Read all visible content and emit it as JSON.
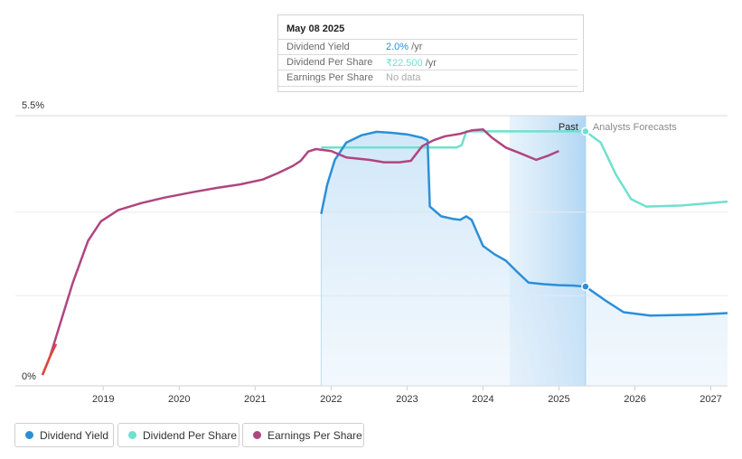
{
  "colors": {
    "dividend_yield": "#2b8fd8",
    "dividend_per_share": "#6fe0cf",
    "earnings_per_share": "#b0457f",
    "eps_negative": "#e0463c"
  },
  "tooltip": {
    "date": "May 08 2025",
    "rows": [
      {
        "label": "Dividend Yield",
        "value": "2.0%",
        "unit": " /yr"
      },
      {
        "label": "Dividend Per Share",
        "value": "₹22.500",
        "unit": " /yr"
      },
      {
        "label": "Earnings Per Share",
        "value": "No data",
        "unit": ""
      }
    ]
  },
  "legend": [
    {
      "label": "Dividend Yield"
    },
    {
      "label": "Dividend Per Share"
    },
    {
      "label": "Earnings Per Share"
    }
  ],
  "chart_data": {
    "type": "line",
    "x_range": [
      2018.2,
      2027.22
    ],
    "y_range_pct": [
      0,
      5.5
    ],
    "y_tick_labels": [
      {
        "v": 5.5,
        "label": "5.5%"
      },
      {
        "v": 0,
        "label": "0%"
      }
    ],
    "x_ticks": [
      {
        "v": 2019,
        "label": "2019"
      },
      {
        "v": 2020,
        "label": "2020"
      },
      {
        "v": 2021,
        "label": "2021"
      },
      {
        "v": 2022,
        "label": "2022"
      },
      {
        "v": 2023,
        "label": "2023"
      },
      {
        "v": 2024,
        "label": "2024"
      },
      {
        "v": 2025,
        "label": "2025"
      },
      {
        "v": 2026,
        "label": "2026"
      },
      {
        "v": 2027,
        "label": "2027"
      }
    ],
    "past_label": "Past",
    "forecast_label": "Analysts Forecasts",
    "past_shade_start": 2024.35,
    "divider_x": 2025.35,
    "series": [
      {
        "name": "Dividend Yield",
        "key": "dividend_yield",
        "fill": true,
        "values": [
          [
            2021.87,
            3.5
          ],
          [
            2021.95,
            4.1
          ],
          [
            2022.05,
            4.6
          ],
          [
            2022.2,
            4.95
          ],
          [
            2022.4,
            5.1
          ],
          [
            2022.6,
            5.17
          ],
          [
            2022.8,
            5.15
          ],
          [
            2023.0,
            5.12
          ],
          [
            2023.2,
            5.05
          ],
          [
            2023.27,
            5.0
          ],
          [
            2023.3,
            3.65
          ],
          [
            2023.45,
            3.45
          ],
          [
            2023.6,
            3.4
          ],
          [
            2023.7,
            3.38
          ],
          [
            2023.78,
            3.45
          ],
          [
            2023.85,
            3.38
          ],
          [
            2024.0,
            2.85
          ],
          [
            2024.15,
            2.68
          ],
          [
            2024.3,
            2.55
          ],
          [
            2024.45,
            2.32
          ],
          [
            2024.6,
            2.1
          ],
          [
            2024.8,
            2.07
          ],
          [
            2025.0,
            2.05
          ],
          [
            2025.2,
            2.04
          ],
          [
            2025.35,
            2.02
          ],
          [
            2025.6,
            1.75
          ],
          [
            2025.85,
            1.5
          ],
          [
            2026.2,
            1.43
          ],
          [
            2026.8,
            1.45
          ],
          [
            2027.22,
            1.48
          ]
        ],
        "marker_at": 2025.35
      },
      {
        "name": "Dividend Per Share",
        "key": "dividend_per_share",
        "fill": false,
        "values": [
          [
            2021.87,
            4.85
          ],
          [
            2023.65,
            4.85
          ],
          [
            2023.72,
            4.9
          ],
          [
            2023.78,
            5.18
          ],
          [
            2025.35,
            5.18
          ],
          [
            2025.55,
            4.95
          ],
          [
            2025.75,
            4.3
          ],
          [
            2025.95,
            3.8
          ],
          [
            2026.15,
            3.65
          ],
          [
            2026.6,
            3.67
          ],
          [
            2027.22,
            3.75
          ]
        ],
        "marker_at": 2025.35
      },
      {
        "name": "Earnings Per Share",
        "key": "earnings_per_share",
        "fill": false,
        "values": [
          [
            2018.2,
            0.22
          ],
          [
            2018.3,
            0.6
          ],
          [
            2018.4,
            1.1
          ],
          [
            2018.6,
            2.1
          ],
          [
            2018.8,
            2.95
          ],
          [
            2018.97,
            3.35
          ],
          [
            2019.2,
            3.58
          ],
          [
            2019.5,
            3.72
          ],
          [
            2019.8,
            3.83
          ],
          [
            2020.2,
            3.95
          ],
          [
            2020.5,
            4.03
          ],
          [
            2020.8,
            4.1
          ],
          [
            2021.1,
            4.2
          ],
          [
            2021.3,
            4.33
          ],
          [
            2021.5,
            4.48
          ],
          [
            2021.6,
            4.58
          ],
          [
            2021.7,
            4.77
          ],
          [
            2021.8,
            4.82
          ],
          [
            2022.0,
            4.78
          ],
          [
            2022.2,
            4.65
          ],
          [
            2022.5,
            4.6
          ],
          [
            2022.7,
            4.55
          ],
          [
            2022.9,
            4.55
          ],
          [
            2023.05,
            4.58
          ],
          [
            2023.2,
            4.88
          ],
          [
            2023.35,
            5.0
          ],
          [
            2023.5,
            5.08
          ],
          [
            2023.7,
            5.13
          ],
          [
            2023.85,
            5.2
          ],
          [
            2024.0,
            5.22
          ],
          [
            2024.12,
            5.05
          ],
          [
            2024.3,
            4.85
          ],
          [
            2024.5,
            4.73
          ],
          [
            2024.7,
            4.6
          ],
          [
            2024.85,
            4.68
          ],
          [
            2025.0,
            4.78
          ]
        ],
        "negative_segment_end": 2018.38
      }
    ]
  }
}
